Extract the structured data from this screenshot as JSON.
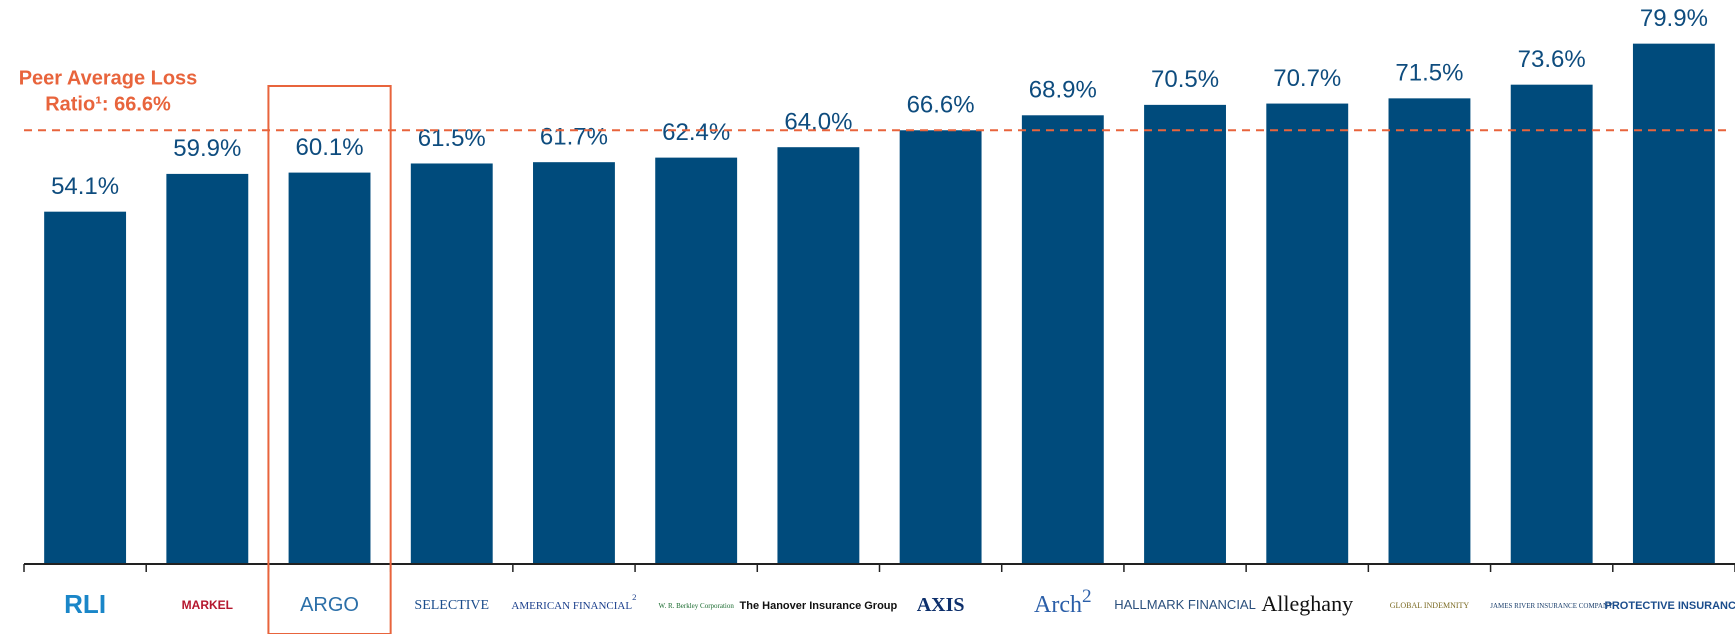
{
  "chart_data": {
    "type": "bar",
    "categories": [
      "RLI",
      "MARKEL",
      "ARGO",
      "SELECTIVE",
      "AMERICAN FINANCIAL",
      "W. R. Berkley Corporation",
      "The Hanover Insurance Group",
      "AXIS",
      "Arch",
      "HALLMARK FINANCIAL",
      "Alleghany",
      "GLOBAL INDEMNITY",
      "JAMES RIVER INSURANCE COMPANY",
      "PROTECTIVE INSURANCE"
    ],
    "category_superscripts": [
      null,
      null,
      null,
      null,
      "2",
      null,
      null,
      null,
      "2",
      null,
      null,
      null,
      null,
      null
    ],
    "values": [
      54.1,
      59.9,
      60.1,
      61.5,
      61.7,
      62.4,
      64.0,
      66.6,
      68.9,
      70.5,
      70.7,
      71.5,
      73.6,
      79.9
    ],
    "value_labels": [
      "54.1%",
      "59.9%",
      "60.1%",
      "61.5%",
      "61.7%",
      "62.4%",
      "64.0%",
      "66.6%",
      "68.9%",
      "70.5%",
      "70.7%",
      "71.5%",
      "73.6%",
      "79.9%"
    ],
    "color": "#004b7c",
    "ylim": [
      0,
      80
    ],
    "highlight": "ARGO",
    "reference_line": {
      "value": 66.6,
      "color": "#e8643c",
      "label_lines": [
        "Peer Average Loss",
        "Ratio¹: 66.6%"
      ]
    }
  }
}
